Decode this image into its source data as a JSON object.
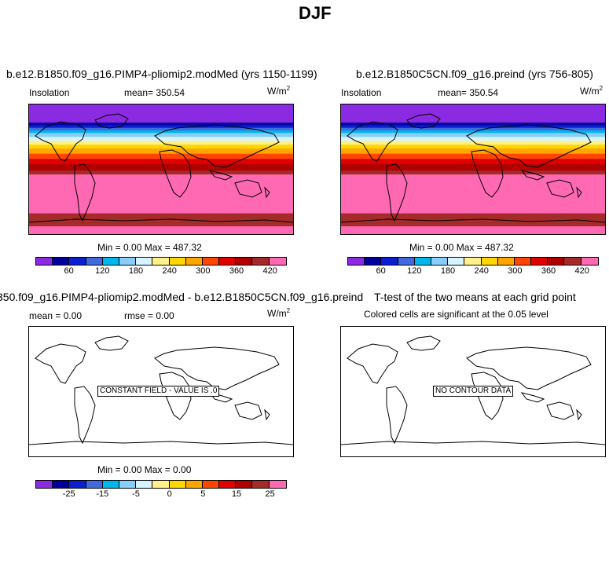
{
  "page_title": "DJF",
  "units": "W/m",
  "units_exp": "2",
  "panels": {
    "p1": {
      "title": "b.e12.B1850.f09_g16.PIMP4-pliomip2.modMed (yrs 1150-1199)",
      "var": "Insolation",
      "mean": "mean= 350.54",
      "minmax": "Min =   0.00 Max = 487.32"
    },
    "p2": {
      "title": "b.e12.B1850C5CN.f09_g16.preind (yrs 756-805)",
      "var": "Insolation",
      "mean": "mean= 350.54",
      "minmax": "Min =   0.00 Max = 487.32"
    },
    "p3": {
      "title": "350.f09_g16.PIMP4-pliomip2.modMed - b.e12.B1850C5CN.f09_g16.preind",
      "mean": "mean =    0.00",
      "rmse": "rmse =    0.00",
      "minmax": "Min =   0.00 Max =   0.00",
      "note": "CONSTANT FIELD - VALUE IS .0"
    },
    "p4": {
      "title": "T-test of the two means at each grid point",
      "subtitle": "Colored cells are significant at the 0.05 level",
      "note": "NO CONTOUR DATA"
    }
  },
  "colorbar": {
    "colors": [
      "#8a2be2",
      "#0000a0",
      "#0a1fd0",
      "#4169e1",
      "#00b7eb",
      "#87cefa",
      "#d6f4ff",
      "#fff08a",
      "#ffd700",
      "#ffa500",
      "#ff4500",
      "#e00000",
      "#b00000",
      "#a52a2a",
      "#ff69b4"
    ],
    "ticks_abs": [
      "60",
      "120",
      "180",
      "240",
      "300",
      "360",
      "420"
    ],
    "ticks_diff": [
      "-25",
      "-15",
      "-5",
      "0",
      "5",
      "15",
      "25"
    ]
  },
  "map_bands": [
    {
      "color": "#8a2be2",
      "span": 14
    },
    {
      "color": "#0000a0",
      "span": 2
    },
    {
      "color": "#0a1fd0",
      "span": 2
    },
    {
      "color": "#4169e1",
      "span": 2
    },
    {
      "color": "#00b7eb",
      "span": 2
    },
    {
      "color": "#87cefa",
      "span": 3
    },
    {
      "color": "#d6f4ff",
      "span": 3
    },
    {
      "color": "#fff08a",
      "span": 3
    },
    {
      "color": "#ffd700",
      "span": 3
    },
    {
      "color": "#ffa500",
      "span": 4
    },
    {
      "color": "#ff4500",
      "span": 4
    },
    {
      "color": "#e00000",
      "span": 4
    },
    {
      "color": "#b00000",
      "span": 5
    },
    {
      "color": "#a52a2a",
      "span": 3
    },
    {
      "color": "#ff69b4",
      "span": 30
    },
    {
      "color": "#a52a2a",
      "span": 10
    },
    {
      "color": "#ff69b4",
      "span": 6
    }
  ]
}
